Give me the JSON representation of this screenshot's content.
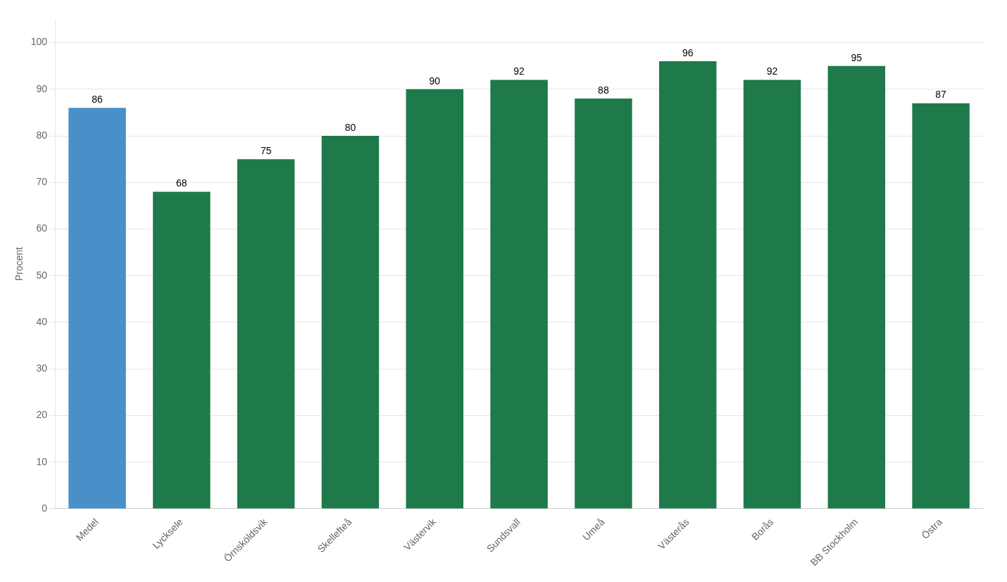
{
  "chart_data": {
    "type": "bar",
    "ylabel": "Procent",
    "categories": [
      "Medel",
      "Lycksele",
      "Örnsköldsvik",
      "Skellefteå",
      "Västervik",
      "Sundsvall",
      "Umeå",
      "Västerås",
      "Borås",
      "BB Stockholm",
      "Östra"
    ],
    "values": [
      86,
      68,
      75,
      80,
      90,
      92,
      88,
      96,
      92,
      95,
      87
    ],
    "colors": [
      "#4a90c8",
      "#1e7a4a",
      "#1e7a4a",
      "#1e7a4a",
      "#1e7a4a",
      "#1e7a4a",
      "#1e7a4a",
      "#1e7a4a",
      "#1e7a4a",
      "#1e7a4a",
      "#1e7a4a"
    ],
    "ylim": [
      0,
      105
    ],
    "yticks": [
      0,
      10,
      20,
      30,
      40,
      50,
      60,
      70,
      80,
      90,
      100
    ],
    "grid": true,
    "data_labels": true
  }
}
